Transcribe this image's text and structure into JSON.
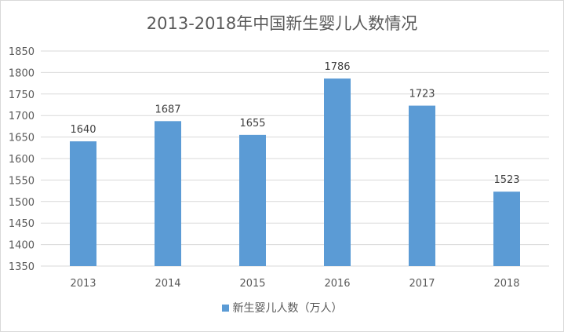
{
  "chart_data": {
    "type": "bar",
    "title": "2013-2018年中国新生婴儿人数情况",
    "categories": [
      "2013",
      "2014",
      "2015",
      "2016",
      "2017",
      "2018"
    ],
    "series": [
      {
        "name": "新生婴儿人数（万人）",
        "values": [
          1640,
          1687,
          1655,
          1786,
          1723,
          1523
        ]
      }
    ],
    "ylim": [
      1350,
      1850
    ],
    "yticks": [
      1350,
      1400,
      1450,
      1500,
      1550,
      1600,
      1650,
      1700,
      1750,
      1800,
      1850
    ],
    "grid": true,
    "data_labels": true,
    "legend_position": "bottom",
    "colors": {
      "bar": "#5b9bd5",
      "grid": "#d9d9d9",
      "text": "#595959"
    }
  }
}
